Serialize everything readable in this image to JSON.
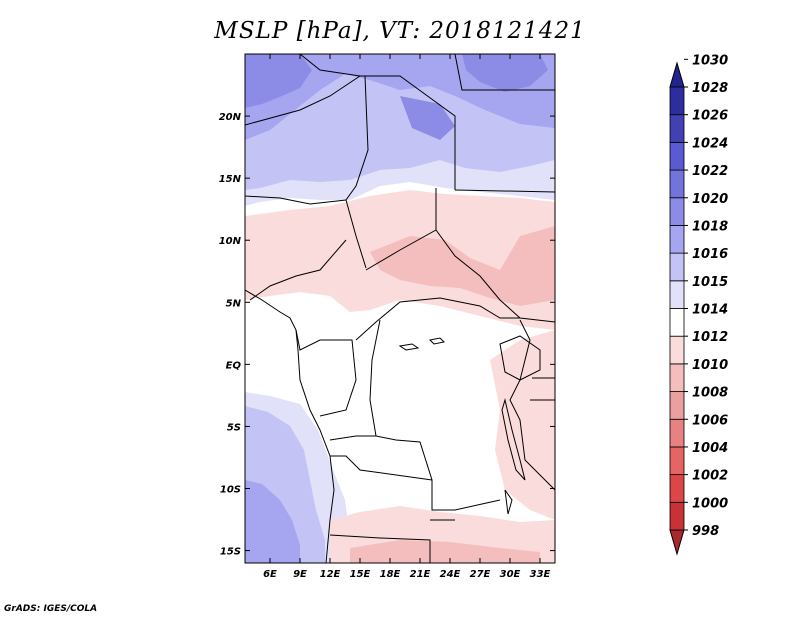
{
  "title": "MSLP [hPa], VT: 2018121421",
  "credit": "GrADS: IGES/COLA",
  "map": {
    "variable": "MSLP",
    "units": "hPa",
    "valid_time": "2018121421",
    "lon_range": [
      3.5,
      34.5
    ],
    "lat_range": [
      -16,
      25
    ],
    "lat_ticks": [
      {
        "value": 20,
        "label": "20N"
      },
      {
        "value": 15,
        "label": "15N"
      },
      {
        "value": 10,
        "label": "10N"
      },
      {
        "value": 5,
        "label": "5N"
      },
      {
        "value": 0,
        "label": "EQ"
      },
      {
        "value": -5,
        "label": "5S"
      },
      {
        "value": -10,
        "label": "10S"
      },
      {
        "value": -15,
        "label": "15S"
      }
    ],
    "lon_ticks": [
      {
        "value": 6,
        "label": "6E"
      },
      {
        "value": 9,
        "label": "9E"
      },
      {
        "value": 12,
        "label": "12E"
      },
      {
        "value": 15,
        "label": "15E"
      },
      {
        "value": 18,
        "label": "18E"
      },
      {
        "value": 21,
        "label": "21E"
      },
      {
        "value": 24,
        "label": "24E"
      },
      {
        "value": 27,
        "label": "27E"
      },
      {
        "value": 30,
        "label": "30E"
      },
      {
        "value": 33,
        "label": "33E"
      }
    ]
  },
  "colorbar": {
    "levels": [
      "998",
      "1000",
      "1002",
      "1004",
      "1006",
      "1008",
      "1010",
      "1012",
      "1014",
      "1015",
      "1016",
      "1018",
      "1020",
      "1022",
      "1024",
      "1026",
      "1028",
      "1030"
    ],
    "colors": [
      "#a8282d",
      "#c83237",
      "#dc4646",
      "#e66464",
      "#e68282",
      "#eba0a0",
      "#f5bebe",
      "#fadcdc",
      "#ffffff",
      "#e1e1fa",
      "#c3c3f5",
      "#a5a5f0",
      "#8c8ce6",
      "#7373dc",
      "#5a5ad2",
      "#4141b4",
      "#2d2da0",
      "#23238c"
    ]
  }
}
